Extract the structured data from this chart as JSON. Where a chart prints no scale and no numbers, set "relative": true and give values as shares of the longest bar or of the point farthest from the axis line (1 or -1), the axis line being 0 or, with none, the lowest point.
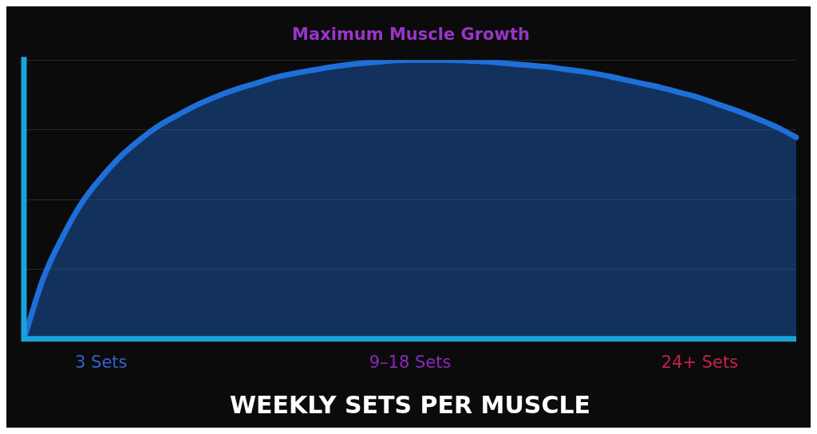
{
  "chart_data": {
    "type": "area",
    "title": "Maximum Muscle Growth",
    "xlabel": "WEEKLY SETS PER MUSCLE",
    "relative": true,
    "grid": "y",
    "marker": "none",
    "categories": [
      null,
      null,
      null,
      null,
      "3 Sets",
      null,
      null,
      null,
      null,
      null,
      null,
      null,
      null,
      null,
      null,
      null,
      null,
      null,
      null,
      null,
      "9–18 Sets",
      null,
      null,
      null,
      null,
      null,
      null,
      null,
      null,
      null,
      null,
      null,
      null,
      null,
      null,
      "24+ Sets",
      null,
      null,
      null,
      null,
      null
    ],
    "series": [
      {
        "color": "#1e6fd9",
        "values": [
          0,
          0.217,
          0.366,
          0.488,
          0.578,
          0.654,
          0.714,
          0.765,
          0.804,
          0.84,
          0.87,
          0.895,
          0.916,
          0.937,
          0.952,
          0.964,
          0.976,
          0.985,
          0.991,
          0.997,
          1,
          1,
          1,
          0.997,
          0.994,
          0.988,
          0.982,
          0.976,
          0.967,
          0.958,
          0.946,
          0.931,
          0.916,
          0.901,
          0.883,
          0.864,
          0.84,
          0.816,
          0.789,
          0.759,
          0.723
        ]
      }
    ]
  }
}
